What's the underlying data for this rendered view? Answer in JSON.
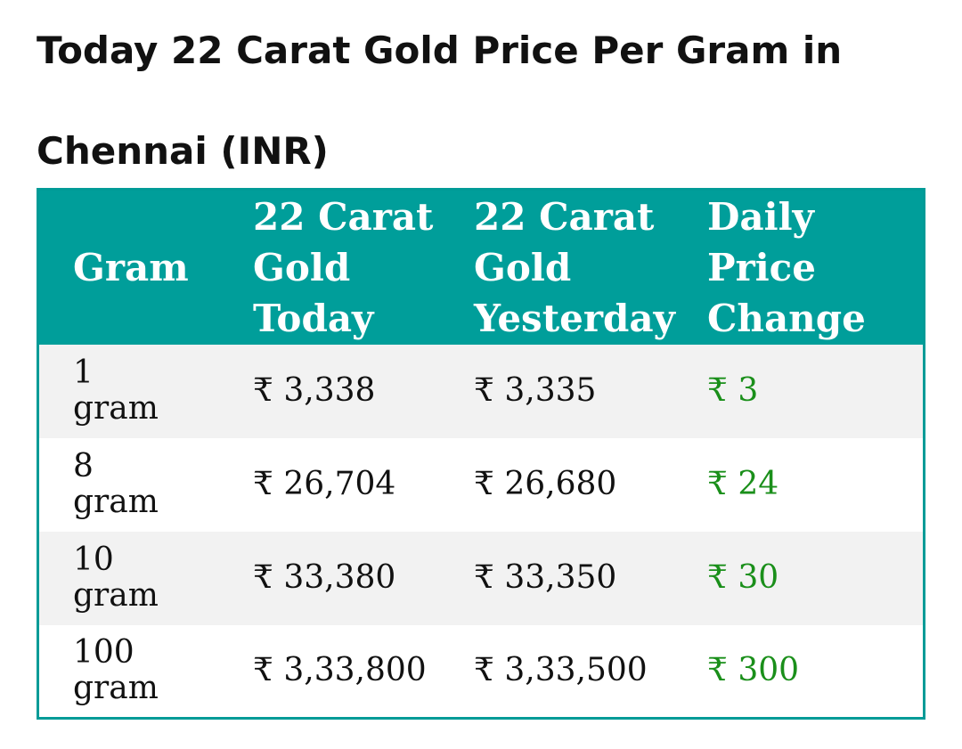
{
  "page": {
    "title": "Today 22 Carat Gold Price Per Gram in Chennai (INR)"
  },
  "table": {
    "headers": {
      "gram": "Gram",
      "today": "22 Carat Gold Today",
      "yesterday": "22 Carat Gold Yesterday",
      "change": "Daily Price Change"
    },
    "rows": [
      {
        "qty": "1",
        "unit": "gram",
        "today": "₹ 3,338",
        "yesterday": "₹ 3,335",
        "change": "₹ 3"
      },
      {
        "qty": "8",
        "unit": "gram",
        "today": "₹ 26,704",
        "yesterday": "₹ 26,680",
        "change": "₹ 24"
      },
      {
        "qty": "10",
        "unit": "gram",
        "today": "₹ 33,380",
        "yesterday": "₹ 33,350",
        "change": "₹ 30"
      },
      {
        "qty": "100",
        "unit": "gram",
        "today": "₹ 3,33,800",
        "yesterday": "₹ 3,33,500",
        "change": "₹ 300"
      }
    ]
  },
  "colors": {
    "header_background": "#009e9a",
    "header_text": "#ffffff",
    "row_stripe": "#f2f2f2",
    "positive_change": "#1a8f1a",
    "border": "#009b97"
  }
}
